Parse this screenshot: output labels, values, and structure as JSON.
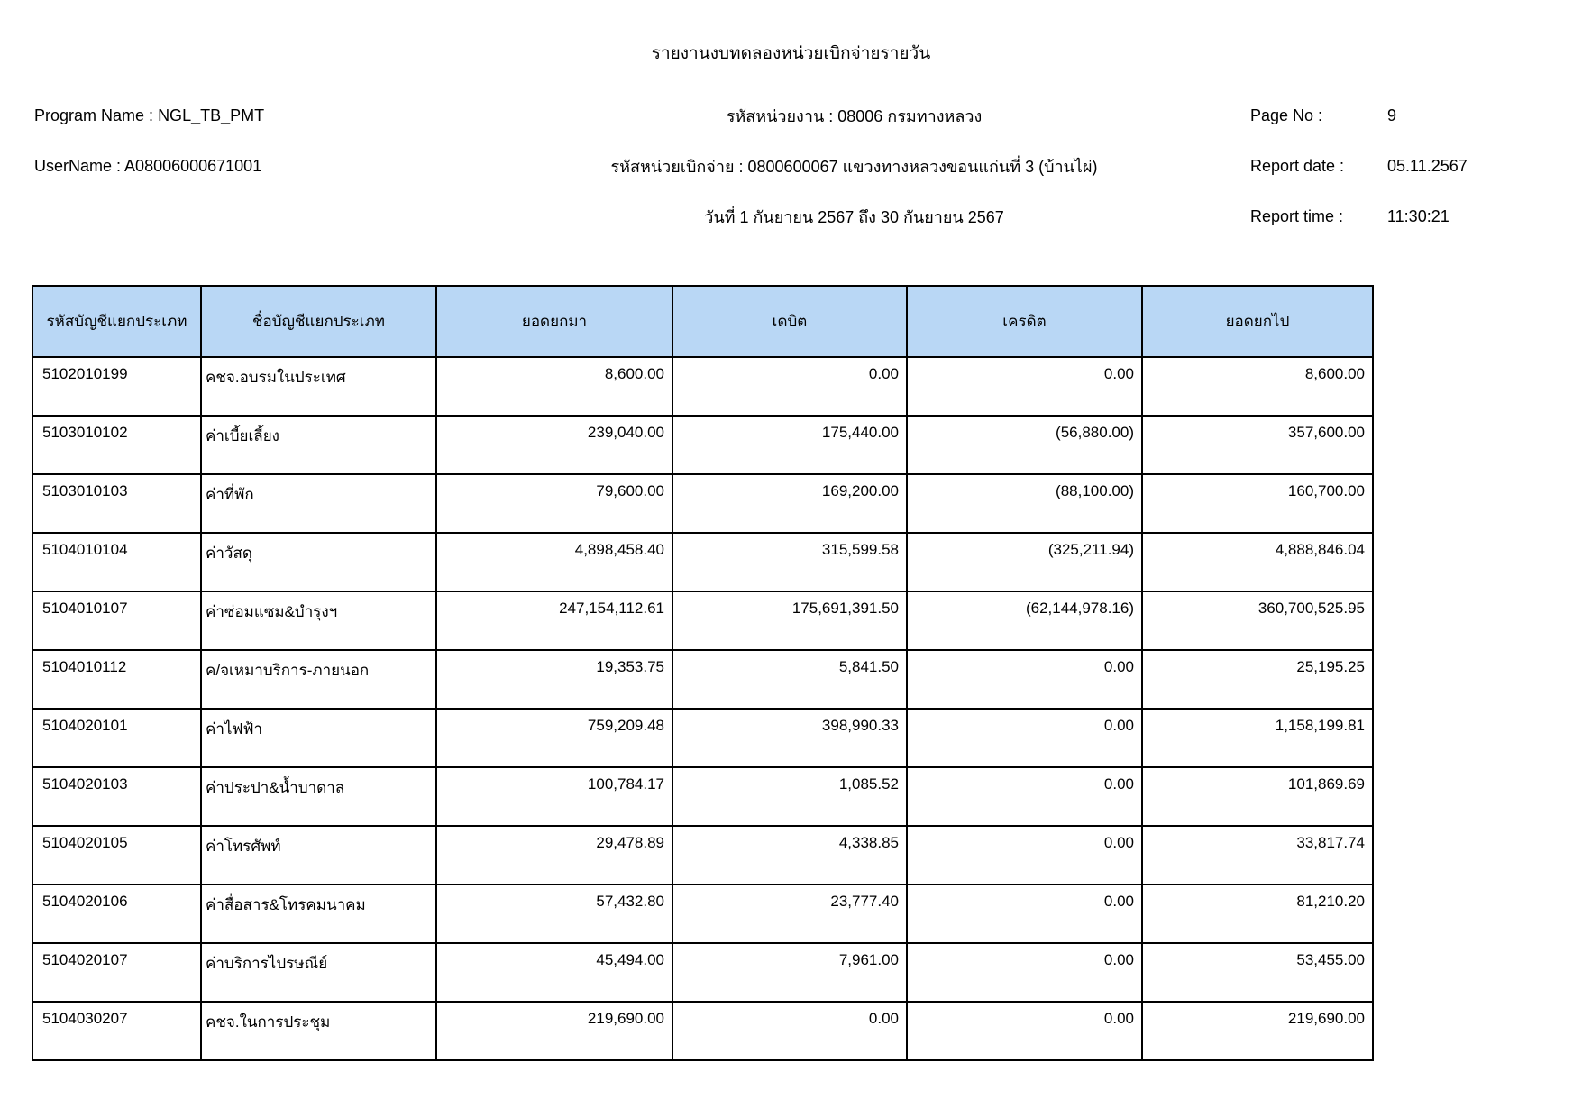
{
  "report": {
    "title": "รายงานงบทดลองหน่วยเบิกจ่ายรายวัน",
    "program_label": "Program Name :",
    "program_value": "NGL_TB_PMT",
    "user_label": "UserName :",
    "user_value": "A08006000671001",
    "agency_line": "รหัสหน่วยงาน : 08006 กรมทางหลวง",
    "disburse_line": "รหัสหน่วยเบิกจ่าย : 0800600067 แขวงทางหลวงขอนแก่นที่ 3 (บ้านไผ่)",
    "period_line": "วันที่ 1 กันยายน 2567 ถึง 30 กันยายน 2567",
    "page_label": "Page No :",
    "page_value": "9",
    "date_label": "Report date :",
    "date_value": "05.11.2567",
    "time_label": "Report time :",
    "time_value": "11:30:21"
  },
  "colors": {
    "header_bg": "#b9d7f5",
    "border": "#000000"
  },
  "table": {
    "headers": [
      "รหัสบัญชีแยกประเภท",
      "ชื่อบัญชีแยกประเภท",
      "ยอดยกมา",
      "เดบิต",
      "เครดิต",
      "ยอดยกไป"
    ],
    "rows": [
      {
        "code": "5102010199",
        "name": "คชจ.อบรมในประเทศ",
        "carry": "8,600.00",
        "debit": "0.00",
        "credit": "0.00",
        "balance": "8,600.00"
      },
      {
        "code": "5103010102",
        "name": "ค่าเบี้ยเลี้ยง",
        "carry": "239,040.00",
        "debit": "175,440.00",
        "credit": "(56,880.00)",
        "balance": "357,600.00"
      },
      {
        "code": "5103010103",
        "name": "ค่าที่พัก",
        "carry": "79,600.00",
        "debit": "169,200.00",
        "credit": "(88,100.00)",
        "balance": "160,700.00"
      },
      {
        "code": "5104010104",
        "name": "ค่าวัสดุ",
        "carry": "4,898,458.40",
        "debit": "315,599.58",
        "credit": "(325,211.94)",
        "balance": "4,888,846.04"
      },
      {
        "code": "5104010107",
        "name": "ค่าซ่อมแซม&บำรุงฯ",
        "carry": "247,154,112.61",
        "debit": "175,691,391.50",
        "credit": "(62,144,978.16)",
        "balance": "360,700,525.95"
      },
      {
        "code": "5104010112",
        "name": "ค/จเหมาบริการ-ภายนอก",
        "carry": "19,353.75",
        "debit": "5,841.50",
        "credit": "0.00",
        "balance": "25,195.25"
      },
      {
        "code": "5104020101",
        "name": "ค่าไฟฟ้า",
        "carry": "759,209.48",
        "debit": "398,990.33",
        "credit": "0.00",
        "balance": "1,158,199.81"
      },
      {
        "code": "5104020103",
        "name": "ค่าประปา&น้ำบาดาล",
        "carry": "100,784.17",
        "debit": "1,085.52",
        "credit": "0.00",
        "balance": "101,869.69"
      },
      {
        "code": "5104020105",
        "name": "ค่าโทรศัพท์",
        "carry": "29,478.89",
        "debit": "4,338.85",
        "credit": "0.00",
        "balance": "33,817.74"
      },
      {
        "code": "5104020106",
        "name": "ค่าสื่อสาร&โทรคมนาคม",
        "carry": "57,432.80",
        "debit": "23,777.40",
        "credit": "0.00",
        "balance": "81,210.20"
      },
      {
        "code": "5104020107",
        "name": "ค่าบริการไปรษณีย์",
        "carry": "45,494.00",
        "debit": "7,961.00",
        "credit": "0.00",
        "balance": "53,455.00"
      },
      {
        "code": "5104030207",
        "name": "คชจ.ในการประชุม",
        "carry": "219,690.00",
        "debit": "0.00",
        "credit": "0.00",
        "balance": "219,690.00"
      }
    ]
  }
}
